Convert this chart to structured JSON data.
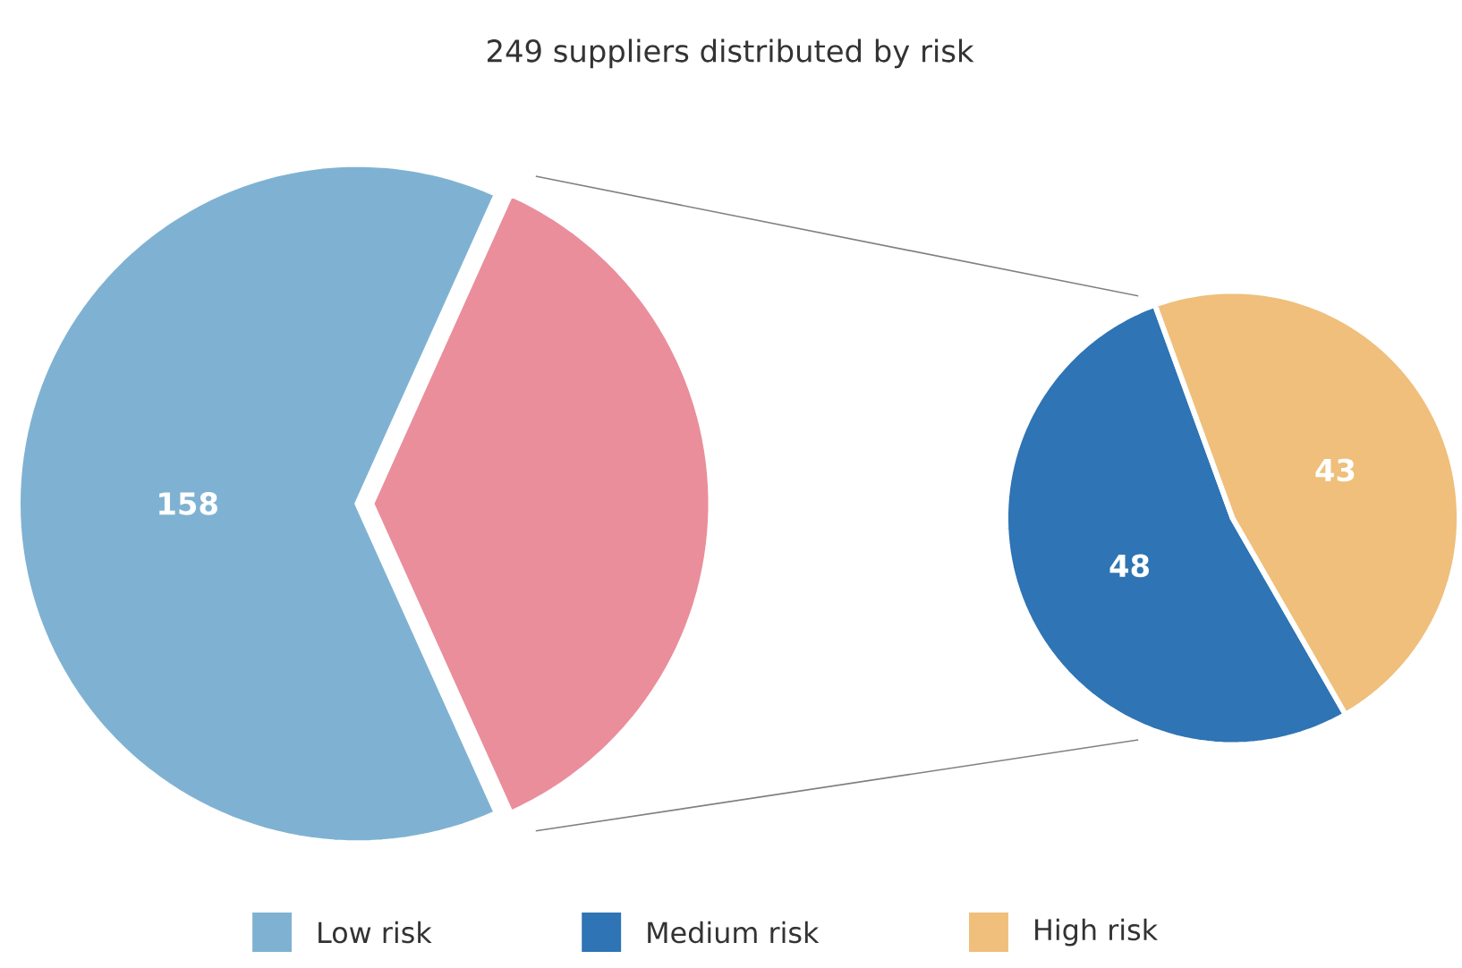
{
  "chart_data": [
    {
      "type": "pie",
      "title": "249 suppliers distributed by risk",
      "categories": [
        "Low risk",
        null
      ],
      "values": [
        158,
        91
      ],
      "colors": [
        "#7fb2d2",
        "#ea8e9b"
      ],
      "value_labels": [
        "158",
        null
      ],
      "legend": "bottom"
    },
    {
      "type": "pie",
      "categories": [
        "Medium risk",
        "High risk"
      ],
      "values": [
        48,
        43
      ],
      "colors": [
        "#2f74b4",
        "#efbf7b"
      ],
      "data_labels": true,
      "legend": "bottom"
    }
  ]
}
